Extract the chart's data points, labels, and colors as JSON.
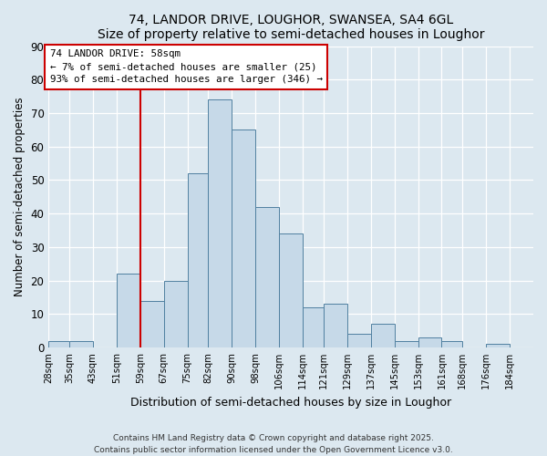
{
  "title1": "74, LANDOR DRIVE, LOUGHOR, SWANSEA, SA4 6GL",
  "title2": "Size of property relative to semi-detached houses in Loughor",
  "xlabel": "Distribution of semi-detached houses by size in Loughor",
  "ylabel": "Number of semi-detached properties",
  "bin_labels": [
    "28sqm",
    "35sqm",
    "43sqm",
    "51sqm",
    "59sqm",
    "67sqm",
    "75sqm",
    "82sqm",
    "90sqm",
    "98sqm",
    "106sqm",
    "114sqm",
    "121sqm",
    "129sqm",
    "137sqm",
    "145sqm",
    "153sqm",
    "161sqm",
    "168sqm",
    "176sqm",
    "184sqm"
  ],
  "bin_edges": [
    28,
    35,
    43,
    51,
    59,
    67,
    75,
    82,
    90,
    98,
    106,
    114,
    121,
    129,
    137,
    145,
    153,
    161,
    168,
    176,
    184,
    192
  ],
  "counts": [
    2,
    2,
    0,
    22,
    14,
    20,
    52,
    74,
    65,
    42,
    34,
    12,
    13,
    4,
    7,
    2,
    3,
    2,
    0,
    1,
    0
  ],
  "bar_color": "#c6d9e8",
  "bar_edge_color": "#5080a0",
  "property_line_x": 59,
  "annotation_title": "74 LANDOR DRIVE: 58sqm",
  "annotation_line1": "← 7% of semi-detached houses are smaller (25)",
  "annotation_line2": "93% of semi-detached houses are larger (346) →",
  "annotation_box_facecolor": "#ffffff",
  "annotation_box_edgecolor": "#cc0000",
  "property_line_color": "#cc0000",
  "ylim": [
    0,
    90
  ],
  "yticks": [
    0,
    10,
    20,
    30,
    40,
    50,
    60,
    70,
    80,
    90
  ],
  "fig_bg_color": "#dce8f0",
  "plot_bg_color": "#dce8f0",
  "grid_color": "#ffffff",
  "footer1": "Contains HM Land Registry data © Crown copyright and database right 2025.",
  "footer2": "Contains public sector information licensed under the Open Government Licence v3.0."
}
